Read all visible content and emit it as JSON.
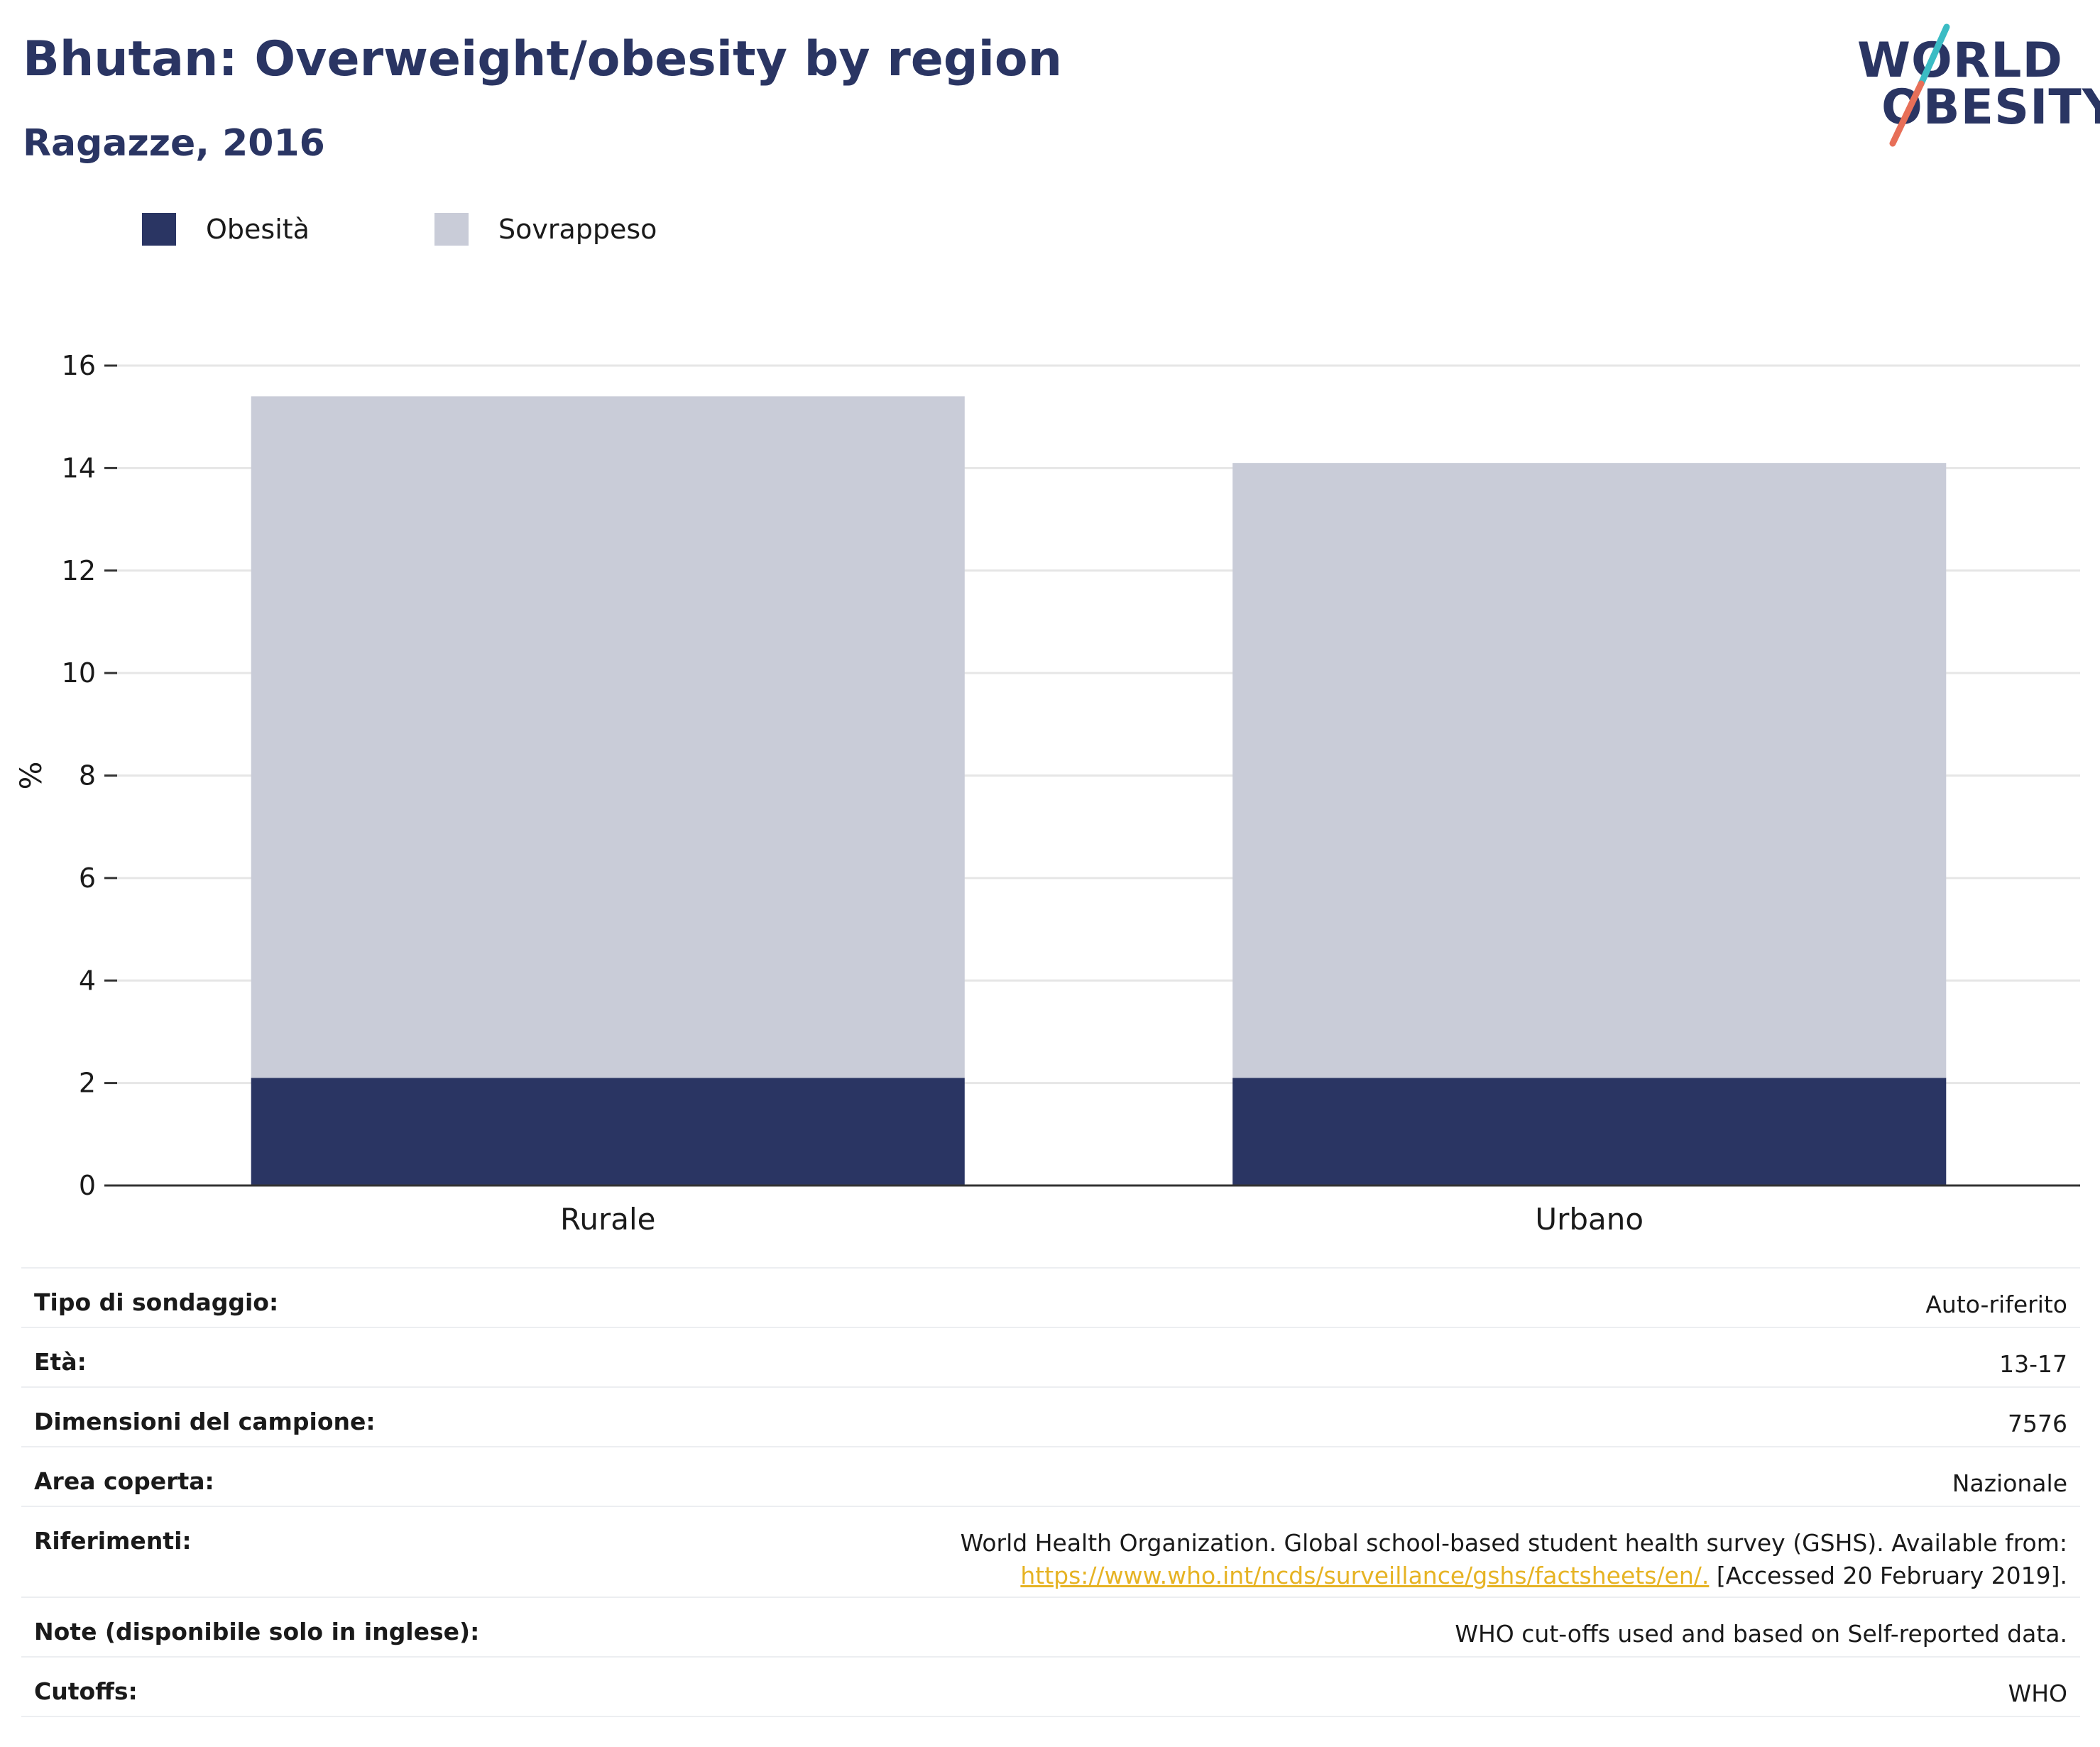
{
  "header": {
    "title": "Bhutan: Overweight/obesity by region",
    "subtitle": "Ragazze, 2016"
  },
  "logo": {
    "line1": "WORLD",
    "line2": "OBESITY",
    "colors": {
      "text": "#2a3563",
      "slash_top": "#3bbcc4",
      "slash_bottom": "#e76f58"
    }
  },
  "colors": {
    "obesity": "#2a3563",
    "overweight": "#c9ccd8",
    "grid": "#e6e6e6",
    "axis": "#333333",
    "link": "#e6b324"
  },
  "chart_data": {
    "type": "bar",
    "stacked": true,
    "categories": [
      "Rurale",
      "Urbano"
    ],
    "series": [
      {
        "name": "Obesità",
        "values": [
          2.1,
          2.1
        ]
      },
      {
        "name": "Sovrappeso",
        "values": [
          13.3,
          12.0
        ]
      }
    ],
    "ylabel": "%",
    "xlabel": "",
    "ylim": [
      0,
      16
    ],
    "yticks": [
      0,
      2,
      4,
      6,
      8,
      10,
      12,
      14,
      16
    ],
    "grid": true,
    "legend_position": "top-left"
  },
  "info": {
    "rows": [
      {
        "label": "Tipo di sondaggio:",
        "value": "Auto-riferito"
      },
      {
        "label": "Età:",
        "value": "13-17"
      },
      {
        "label": "Dimensioni del campione:",
        "value": "7576"
      },
      {
        "label": "Area coperta:",
        "value": "Nazionale"
      }
    ],
    "references": {
      "label": "Riferimenti:",
      "text": "World Health Organization. Global school-based student health survey (GSHS). Available from:",
      "link": "https://www.who.int/ncds/surveillance/gshs/factsheets/en/.",
      "accessed": "[Accessed 20 February 2019]."
    },
    "rows2": [
      {
        "label": "Note (disponibile solo in inglese):",
        "value": "WHO cut-offs used and based on Self-reported data."
      },
      {
        "label": "Cutoffs:",
        "value": "WHO"
      }
    ]
  }
}
